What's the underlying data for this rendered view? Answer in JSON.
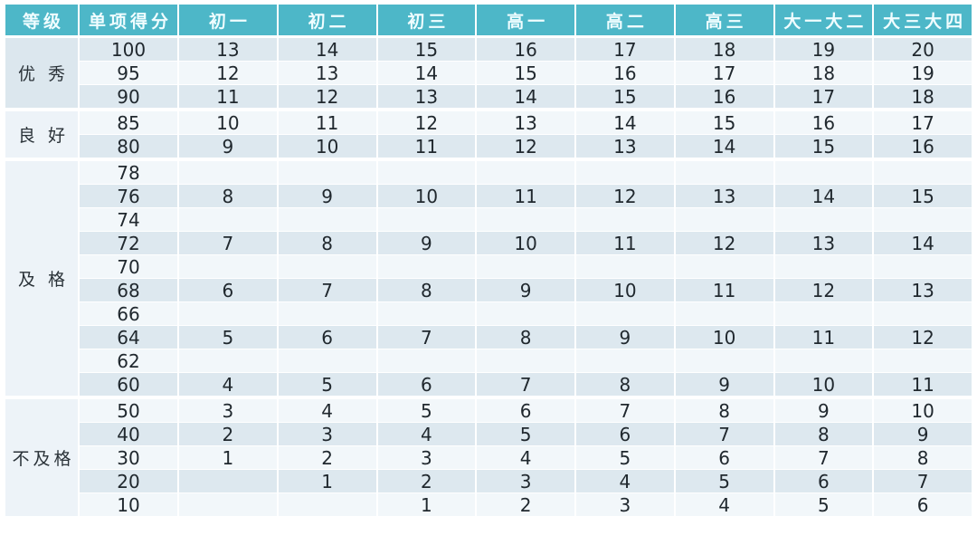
{
  "chart_data": {
    "type": "table",
    "columns": [
      "等级",
      "单项得分",
      "初一",
      "初二",
      "初三",
      "高一",
      "高二",
      "高三",
      "大一大二",
      "大三大四"
    ],
    "column_keys": [
      "grade",
      "score",
      "junior1",
      "junior2",
      "junior3",
      "senior1",
      "senior2",
      "senior3",
      "college1-2",
      "college3-4"
    ],
    "groups": [
      {
        "label": "优 秀",
        "rows": [
          {
            "score": "100",
            "values": [
              "13",
              "14",
              "15",
              "16",
              "17",
              "18",
              "19",
              "20"
            ]
          },
          {
            "score": "95",
            "values": [
              "12",
              "13",
              "14",
              "15",
              "16",
              "17",
              "18",
              "19"
            ]
          },
          {
            "score": "90",
            "values": [
              "11",
              "12",
              "13",
              "14",
              "15",
              "16",
              "17",
              "18"
            ]
          }
        ]
      },
      {
        "label": "良 好",
        "rows": [
          {
            "score": "85",
            "values": [
              "10",
              "11",
              "12",
              "13",
              "14",
              "15",
              "16",
              "17"
            ]
          },
          {
            "score": "80",
            "values": [
              "9",
              "10",
              "11",
              "12",
              "13",
              "14",
              "15",
              "16"
            ]
          }
        ]
      },
      {
        "label": "及 格",
        "rows": [
          {
            "score": "78",
            "values": [
              "",
              "",
              "",
              "",
              "",
              "",
              "",
              ""
            ]
          },
          {
            "score": "76",
            "values": [
              "8",
              "9",
              "10",
              "11",
              "12",
              "13",
              "14",
              "15"
            ]
          },
          {
            "score": "74",
            "values": [
              "",
              "",
              "",
              "",
              "",
              "",
              "",
              ""
            ]
          },
          {
            "score": "72",
            "values": [
              "7",
              "8",
              "9",
              "10",
              "11",
              "12",
              "13",
              "14"
            ]
          },
          {
            "score": "70",
            "values": [
              "",
              "",
              "",
              "",
              "",
              "",
              "",
              ""
            ]
          },
          {
            "score": "68",
            "values": [
              "6",
              "7",
              "8",
              "9",
              "10",
              "11",
              "12",
              "13"
            ]
          },
          {
            "score": "66",
            "values": [
              "",
              "",
              "",
              "",
              "",
              "",
              "",
              ""
            ]
          },
          {
            "score": "64",
            "values": [
              "5",
              "6",
              "7",
              "8",
              "9",
              "10",
              "11",
              "12"
            ]
          },
          {
            "score": "62",
            "values": [
              "",
              "",
              "",
              "",
              "",
              "",
              "",
              ""
            ]
          },
          {
            "score": "60",
            "values": [
              "4",
              "5",
              "6",
              "7",
              "8",
              "9",
              "10",
              "11"
            ]
          }
        ]
      },
      {
        "label": "不及格",
        "rows": [
          {
            "score": "50",
            "values": [
              "3",
              "4",
              "5",
              "6",
              "7",
              "8",
              "9",
              "10"
            ]
          },
          {
            "score": "40",
            "values": [
              "2",
              "3",
              "4",
              "5",
              "6",
              "7",
              "8",
              "9"
            ]
          },
          {
            "score": "30",
            "values": [
              "1",
              "2",
              "3",
              "4",
              "5",
              "6",
              "7",
              "8"
            ]
          },
          {
            "score": "20",
            "values": [
              "",
              "1",
              "2",
              "3",
              "4",
              "5",
              "6",
              "7"
            ]
          },
          {
            "score": "10",
            "values": [
              "",
              "",
              "1",
              "2",
              "3",
              "4",
              "5",
              "6"
            ]
          }
        ]
      }
    ],
    "layout": {
      "grid": "white gaps between all cells, thicker white band between grade groups",
      "row_striping": "alternating from first data row: shaded, plain, shaded, ..."
    }
  },
  "colors": {
    "header_bg": "#4db7c8",
    "header_text": "#f0fdff",
    "row_shaded_bg": "#dde8ef",
    "row_plain_bg": "#f2f7fa",
    "label_cell_bg": "#edf3f8",
    "label_cell_first_bg": "#dce7ee",
    "cell_text": "#20282e",
    "grid_gap": "#ffffff"
  }
}
